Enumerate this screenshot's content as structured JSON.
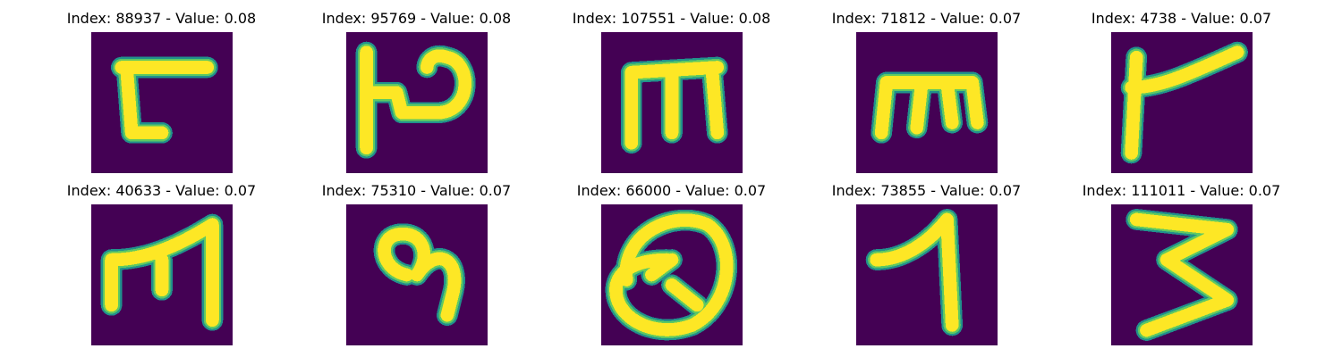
{
  "colors": {
    "background": "#440154",
    "stroke_core": "#fde725",
    "stroke_edge": "#5ec962",
    "stroke_halo": "#21918c"
  },
  "panels": [
    {
      "title": "Index: 88937 - Value: 0.08",
      "glyph_icon": "glyph-88937-icon"
    },
    {
      "title": "Index: 95769 - Value: 0.08",
      "glyph_icon": "glyph-95769-icon"
    },
    {
      "title": "Index: 107551 - Value: 0.08",
      "glyph_icon": "glyph-107551-icon"
    },
    {
      "title": "Index: 71812 - Value: 0.07",
      "glyph_icon": "glyph-71812-icon"
    },
    {
      "title": "Index: 4738 - Value: 0.07",
      "glyph_icon": "glyph-4738-icon"
    },
    {
      "title": "Index: 40633 - Value: 0.07",
      "glyph_icon": "glyph-40633-icon"
    },
    {
      "title": "Index: 75310 - Value: 0.07",
      "glyph_icon": "glyph-75310-icon"
    },
    {
      "title": "Index: 66000 - Value: 0.07",
      "glyph_icon": "glyph-66000-icon"
    },
    {
      "title": "Index: 73855 - Value: 0.07",
      "glyph_icon": "glyph-73855-icon"
    },
    {
      "title": "Index: 111011 - Value: 0.07",
      "glyph_icon": "glyph-111011-icon"
    }
  ]
}
